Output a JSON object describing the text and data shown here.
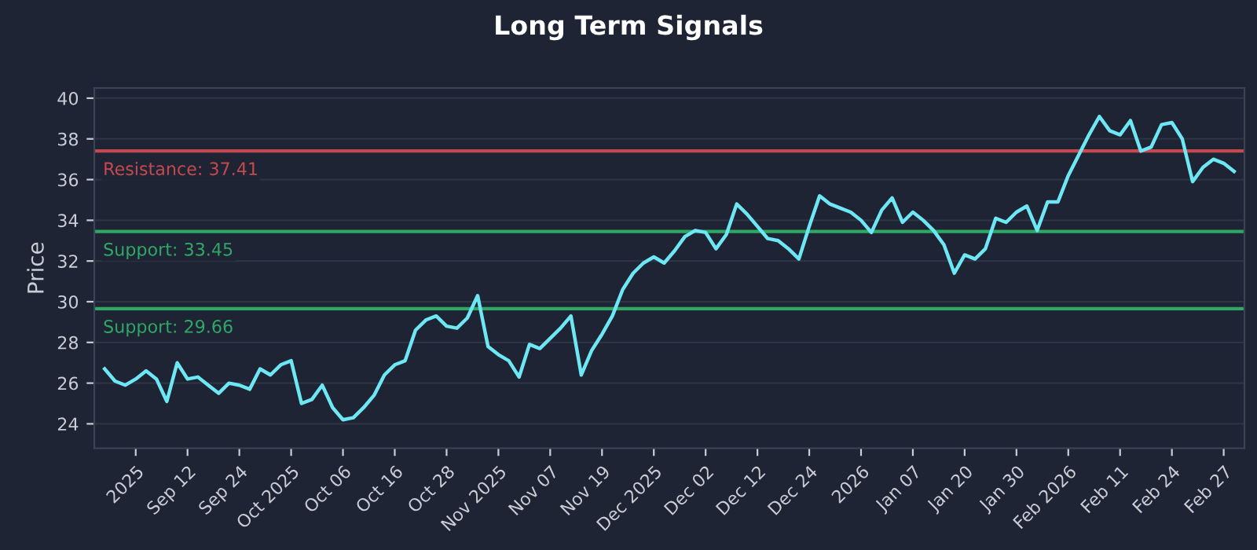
{
  "chart_data": {
    "type": "line",
    "title": "Long Term Signals",
    "ylabel": "Price",
    "categories": [
      null,
      null,
      null,
      "2025",
      null,
      null,
      null,
      null,
      "Sep 12",
      null,
      null,
      null,
      null,
      "Sep 24",
      null,
      null,
      null,
      null,
      "Oct 2025",
      null,
      null,
      null,
      null,
      "Oct 06",
      null,
      null,
      null,
      null,
      "Oct 16",
      null,
      null,
      null,
      null,
      "Oct 28",
      null,
      null,
      null,
      null,
      "Nov 2025",
      null,
      null,
      null,
      null,
      "Nov 07",
      null,
      null,
      null,
      null,
      "Nov 19",
      null,
      null,
      null,
      null,
      "Dec 2025",
      null,
      null,
      null,
      null,
      "Dec 02",
      null,
      null,
      null,
      null,
      "Dec 12",
      null,
      null,
      null,
      null,
      "Dec 24",
      null,
      null,
      null,
      null,
      "2026",
      null,
      null,
      null,
      null,
      "Jan 07",
      null,
      null,
      null,
      null,
      "Jan 20",
      null,
      null,
      null,
      null,
      "Jan 30",
      null,
      null,
      null,
      null,
      "Feb 2026",
      null,
      null,
      null,
      null,
      "Feb 11",
      null,
      null,
      null,
      null,
      "Feb 24",
      null,
      null,
      null,
      null,
      "Feb 27",
      null
    ],
    "series": [
      {
        "color": "#6ee7f5",
        "values": [
          26.7,
          26.1,
          25.9,
          26.2,
          26.6,
          26.2,
          25.1,
          27.0,
          26.2,
          26.3,
          25.9,
          25.5,
          26.0,
          25.9,
          25.7,
          26.7,
          26.4,
          26.9,
          27.1,
          25.0,
          25.2,
          25.9,
          24.8,
          24.2,
          24.3,
          24.8,
          25.4,
          26.4,
          26.9,
          27.1,
          28.6,
          29.1,
          29.3,
          28.8,
          28.7,
          29.2,
          30.3,
          27.8,
          27.4,
          27.1,
          26.3,
          27.9,
          27.7,
          28.2,
          28.7,
          29.3,
          26.4,
          27.6,
          28.4,
          29.3,
          30.6,
          31.4,
          31.9,
          32.2,
          31.9,
          32.5,
          33.2,
          33.5,
          33.4,
          32.6,
          33.3,
          34.8,
          34.3,
          33.7,
          33.1,
          33.0,
          32.6,
          32.1,
          33.7,
          35.2,
          34.8,
          34.6,
          34.4,
          34.0,
          33.4,
          34.5,
          35.1,
          33.9,
          34.4,
          34.0,
          33.5,
          32.8,
          31.4,
          32.3,
          32.1,
          32.6,
          34.1,
          33.9,
          34.4,
          34.7,
          33.5,
          34.9,
          34.9,
          36.2,
          37.2,
          38.2,
          39.1,
          38.4,
          38.2,
          38.9,
          37.4,
          37.6,
          38.7,
          38.8,
          38.0,
          35.9,
          36.6,
          37.0,
          36.8,
          36.4
        ]
      }
    ],
    "ylim": [
      22.8,
      40.5
    ],
    "yticks": [
      24,
      26,
      28,
      30,
      32,
      34,
      36,
      38,
      40
    ],
    "grid": "y",
    "ref_lines": [
      {
        "axis": "y",
        "value": 37.41,
        "label": "Resistance: 37.41",
        "color": "#c44a4f"
      },
      {
        "axis": "y",
        "value": 33.45,
        "label": "Support: 33.45",
        "color": "#2fa866"
      },
      {
        "axis": "y",
        "value": 29.66,
        "label": "Support: 29.66",
        "color": "#2fa866"
      }
    ]
  }
}
